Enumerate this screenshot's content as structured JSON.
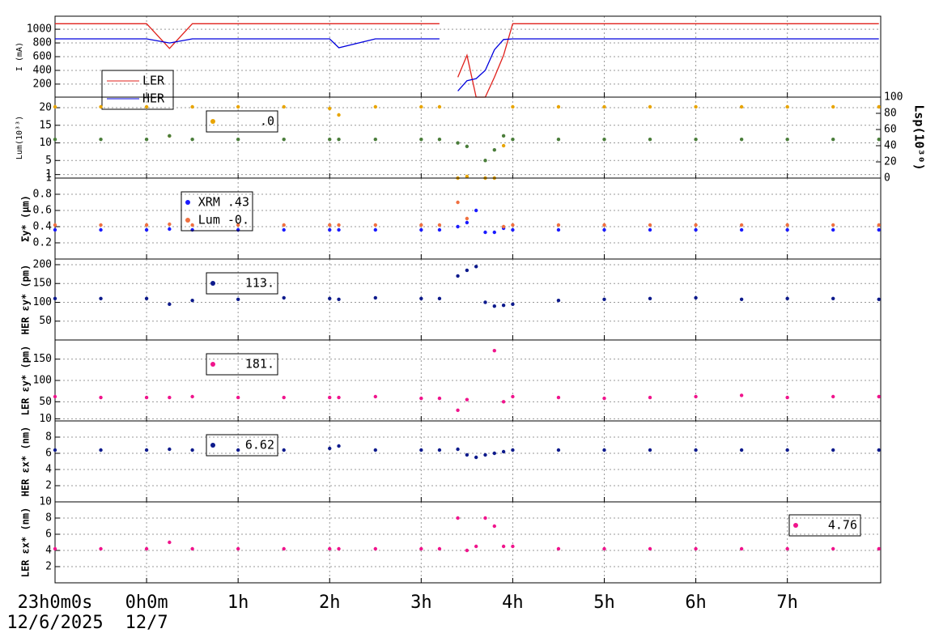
{
  "chart_data": [
    {
      "type": "line",
      "ylabel": "I (mA)",
      "xlim": [
        -1,
        8.02
      ],
      "xticks": [
        0,
        1,
        2,
        3,
        4,
        5,
        6,
        7
      ],
      "ylim": [
        10,
        1190
      ],
      "yticks": [
        200,
        400,
        600,
        800,
        1000
      ],
      "grid": true,
      "x": [
        -1,
        -0.5,
        0,
        0.25,
        0.5,
        1,
        1.5,
        2,
        2.1,
        2.5,
        3,
        3.2,
        3.3,
        3.4,
        3.5,
        3.6,
        3.7,
        3.8,
        3.9,
        4,
        4.5,
        5,
        5.5,
        6,
        6.5,
        7,
        7.5,
        8
      ],
      "series": [
        {
          "name": "LER",
          "color": "#e0201b",
          "values": [
            1080,
            1080,
            1080,
            720,
            1080,
            1080,
            1080,
            1080,
            1080,
            1080,
            1080,
            1080,
            null,
            300,
            620,
            10,
            10,
            300,
            620,
            1080,
            1080,
            1080,
            1080,
            1080,
            1080,
            1080,
            1080,
            1080
          ]
        },
        {
          "name": "HER",
          "color": "#0000dd",
          "values": [
            860,
            860,
            860,
            800,
            860,
            860,
            860,
            860,
            730,
            860,
            860,
            860,
            null,
            100,
            250,
            280,
            400,
            700,
            850,
            860,
            860,
            860,
            860,
            860,
            860,
            860,
            860,
            860
          ]
        }
      ]
    },
    {
      "type": "scatter",
      "ylabel": "Lum(10³³)",
      "y2label": "Lsp(10³⁰)",
      "xlim": [
        -1,
        8.02
      ],
      "xticks": [
        0,
        1,
        2,
        3,
        4,
        5,
        6,
        7
      ],
      "ylim": [
        0,
        23
      ],
      "yticks": [
        1,
        5,
        10,
        15,
        20
      ],
      "y2lim": [
        0,
        100
      ],
      "y2ticks": [
        0,
        20,
        40,
        60,
        80,
        100
      ],
      "grid": true,
      "x": [
        -1,
        -0.5,
        0,
        0.25,
        0.5,
        1,
        1.5,
        2,
        2.1,
        2.5,
        3,
        3.2,
        3.3,
        3.4,
        3.5,
        3.6,
        3.7,
        3.8,
        3.9,
        4,
        4.5,
        5,
        5.5,
        6,
        6.5,
        7,
        7.5,
        8
      ],
      "series": [
        {
          "name": ".0",
          "color": "#e8a400",
          "axis": "y2",
          "values": [
            88,
            88,
            88,
            52,
            88,
            88,
            88,
            86,
            78,
            88,
            88,
            88,
            null,
            0,
            2,
            null,
            0,
            0,
            40,
            88,
            88,
            88,
            88,
            88,
            88,
            88,
            88,
            88
          ]
        },
        {
          "color": "#4a7d3a",
          "values": [
            11,
            11,
            11,
            12,
            11,
            11,
            11,
            11,
            11,
            11,
            11,
            11,
            null,
            10,
            9,
            null,
            5,
            8,
            12,
            11,
            11,
            11,
            11,
            11,
            11,
            11,
            11,
            11
          ]
        }
      ]
    },
    {
      "type": "scatter",
      "ylabel": "Σy* (μm)",
      "xlim": [
        -1,
        8.02
      ],
      "xticks": [
        0,
        1,
        2,
        3,
        4,
        5,
        6,
        7
      ],
      "ylim": [
        0,
        1
      ],
      "yticks": [
        0.2,
        0.4,
        0.6,
        0.8,
        1
      ],
      "grid": true,
      "x": [
        -1,
        -0.5,
        0,
        0.25,
        0.5,
        1,
        1.5,
        2,
        2.1,
        2.5,
        3,
        3.2,
        3.3,
        3.4,
        3.5,
        3.6,
        3.7,
        3.8,
        3.9,
        4,
        4.5,
        5,
        5.5,
        6,
        6.5,
        7,
        7.5,
        8
      ],
      "series": [
        {
          "name": "XRM  .43",
          "color": "#1a1aff",
          "values": [
            0.36,
            0.36,
            0.36,
            0.37,
            0.36,
            0.36,
            0.36,
            0.36,
            0.36,
            0.36,
            0.36,
            0.36,
            null,
            0.4,
            0.45,
            0.6,
            0.33,
            0.33,
            0.38,
            0.36,
            0.36,
            0.36,
            0.36,
            0.36,
            0.36,
            0.36,
            0.36,
            0.36
          ]
        },
        {
          "name": "Lum -0.",
          "color": "#f07040",
          "values": [
            0.42,
            0.42,
            0.42,
            0.43,
            0.42,
            0.42,
            0.42,
            0.42,
            0.42,
            0.42,
            0.42,
            0.42,
            null,
            0.7,
            0.5,
            null,
            null,
            null,
            0.4,
            0.42,
            0.42,
            0.42,
            0.42,
            0.42,
            0.42,
            0.42,
            0.42,
            0.42
          ]
        }
      ]
    },
    {
      "type": "scatter",
      "ylabel": "HER εy* (pm)",
      "xlim": [
        -1,
        8.02
      ],
      "xticks": [
        0,
        1,
        2,
        3,
        4,
        5,
        6,
        7
      ],
      "ylim": [
        0,
        215
      ],
      "yticks": [
        50,
        100,
        150,
        200
      ],
      "grid": true,
      "x": [
        -1,
        -0.5,
        0,
        0.25,
        0.5,
        1,
        1.5,
        2,
        2.1,
        2.5,
        3,
        3.2,
        3.3,
        3.4,
        3.5,
        3.6,
        3.7,
        3.8,
        3.9,
        4,
        4.5,
        5,
        5.5,
        6,
        6.5,
        7,
        7.5,
        8
      ],
      "series": [
        {
          "name": "113.",
          "color": "#0d1a8c",
          "values": [
            110,
            110,
            110,
            95,
            105,
            108,
            112,
            110,
            108,
            112,
            110,
            110,
            null,
            170,
            185,
            195,
            100,
            90,
            92,
            95,
            105,
            108,
            110,
            112,
            108,
            110,
            110,
            108
          ]
        }
      ]
    },
    {
      "type": "scatter",
      "ylabel": "LER εy* (pm)",
      "xlim": [
        -1,
        8.02
      ],
      "xticks": [
        0,
        1,
        2,
        3,
        4,
        5,
        6,
        7
      ],
      "ylim": [
        5,
        195
      ],
      "yticks": [
        10,
        50,
        100,
        150
      ],
      "grid": true,
      "x": [
        -1,
        -0.5,
        0,
        0.25,
        0.5,
        1,
        1.5,
        2,
        2.1,
        2.5,
        3,
        3.2,
        3.3,
        3.4,
        3.5,
        3.6,
        3.7,
        3.8,
        3.9,
        4,
        4.5,
        5,
        5.5,
        6,
        6.5,
        7,
        7.5,
        8
      ],
      "series": [
        {
          "name": "181.",
          "color": "#f0148c",
          "values": [
            62,
            60,
            60,
            60,
            62,
            60,
            60,
            60,
            60,
            62,
            58,
            58,
            null,
            30,
            55,
            null,
            null,
            170,
            50,
            62,
            60,
            58,
            60,
            62,
            65,
            60,
            62,
            62
          ]
        }
      ]
    },
    {
      "type": "scatter",
      "ylabel": "HER εx* (nm)",
      "xlim": [
        -1,
        8.02
      ],
      "xticks": [
        0,
        1,
        2,
        3,
        4,
        5,
        6,
        7
      ],
      "ylim": [
        0,
        10
      ],
      "yticks": [
        2,
        4,
        6,
        8
      ],
      "grid": true,
      "x": [
        -1,
        -0.5,
        0,
        0.25,
        0.5,
        1,
        1.5,
        2,
        2.1,
        2.5,
        3,
        3.2,
        3.3,
        3.4,
        3.5,
        3.6,
        3.7,
        3.8,
        3.9,
        4,
        4.5,
        5,
        5.5,
        6,
        6.5,
        7,
        7.5,
        8
      ],
      "series": [
        {
          "name": "6.62",
          "color": "#0d1a8c",
          "values": [
            6.4,
            6.4,
            6.4,
            6.5,
            6.4,
            6.4,
            6.4,
            6.6,
            6.9,
            6.4,
            6.4,
            6.4,
            null,
            6.5,
            5.8,
            5.5,
            5.8,
            6,
            6.2,
            6.4,
            6.4,
            6.4,
            6.4,
            6.4,
            6.4,
            6.4,
            6.4,
            6.4
          ]
        }
      ]
    },
    {
      "type": "scatter",
      "ylabel": "LER εx* (nm)",
      "xlim": [
        -1,
        8.02
      ],
      "ylim": [
        0,
        10
      ],
      "yticks": [
        2,
        4,
        6,
        8,
        10
      ],
      "grid": true,
      "xticks": [
        {
          "value": -1,
          "label": "23h0m0s"
        },
        {
          "value": 0,
          "label": "0h0m"
        },
        {
          "value": 1,
          "label": "1h"
        },
        {
          "value": 2,
          "label": "2h"
        },
        {
          "value": 3,
          "label": "3h"
        },
        {
          "value": 4,
          "label": "4h"
        },
        {
          "value": 5,
          "label": "5h"
        },
        {
          "value": 6,
          "label": "6h"
        },
        {
          "value": 7,
          "label": "7h"
        }
      ],
      "xdates": [
        {
          "value": -1,
          "label": "12/6/2025"
        },
        {
          "value": 0,
          "label": "12/7"
        }
      ],
      "x": [
        -1,
        -0.5,
        0,
        0.25,
        0.5,
        1,
        1.5,
        2,
        2.1,
        2.5,
        3,
        3.2,
        3.3,
        3.4,
        3.5,
        3.6,
        3.7,
        3.8,
        3.9,
        4,
        4.5,
        5,
        5.5,
        6,
        6.5,
        7,
        7.5,
        8
      ],
      "series": [
        {
          "name": "4.76",
          "color": "#f0148c",
          "values": [
            4.2,
            4.2,
            4.2,
            5,
            4.2,
            4.2,
            4.2,
            4.2,
            4.2,
            4.2,
            4.2,
            4.2,
            null,
            8,
            4,
            4.5,
            8,
            7,
            4.5,
            4.5,
            4.2,
            4.2,
            4.2,
            4.2,
            4.2,
            4.2,
            4.2,
            4.2
          ]
        }
      ]
    }
  ]
}
